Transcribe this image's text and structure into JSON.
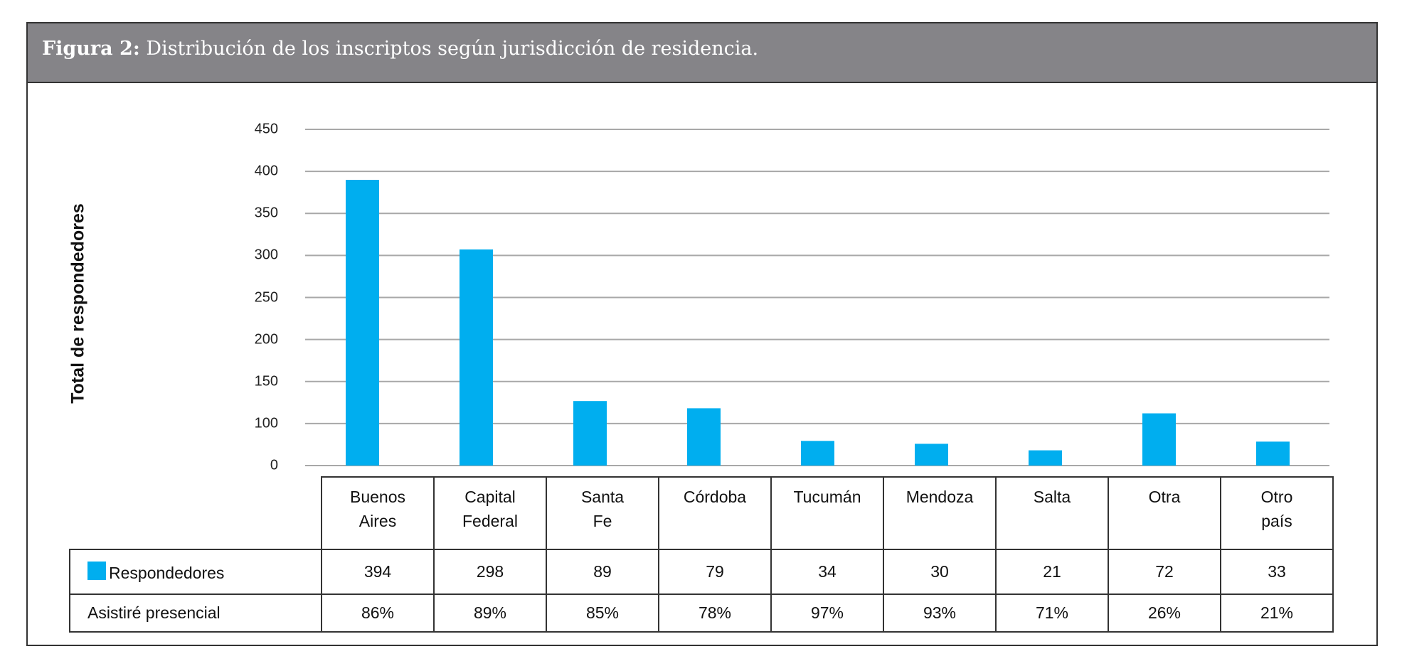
{
  "header": {
    "figure_label": "Figura 2:",
    "title": "Distribución de los inscriptos según jurisdicción de residencia."
  },
  "chart_data": {
    "type": "bar",
    "title": "Distribución de los inscriptos según jurisdicción de residencia.",
    "ylabel": "Total de respondedores",
    "y_ticks": [
      "450",
      "400",
      "350",
      "300",
      "250",
      "200",
      "150",
      "100",
      "0"
    ],
    "grid": true,
    "categories": [
      [
        "Buenos",
        "Aires"
      ],
      [
        "Capital",
        "Federal"
      ],
      [
        "Santa",
        "Fe"
      ],
      [
        "Córdoba"
      ],
      [
        "Tucumán"
      ],
      [
        "Mendoza"
      ],
      [
        "Salta"
      ],
      [
        "Otra"
      ],
      [
        "Otro",
        "país"
      ]
    ],
    "series": [
      {
        "name": "Respondedores",
        "values": [
          394,
          298,
          89,
          79,
          34,
          30,
          21,
          72,
          33
        ],
        "color": "#00AEEF"
      }
    ],
    "table_rows": [
      {
        "label": "Respondedores",
        "values": [
          "394",
          "298",
          "89",
          "79",
          "34",
          "30",
          "21",
          "72",
          "33"
        ]
      },
      {
        "label": "Asistiré presencial",
        "values": [
          "86%",
          "89%",
          "85%",
          "78%",
          "97%",
          "93%",
          "71%",
          "26%",
          "21%"
        ]
      }
    ]
  },
  "colors": {
    "header_bg": "#858488",
    "bar": "#00AEEF",
    "grid": "#A8A8A8"
  }
}
